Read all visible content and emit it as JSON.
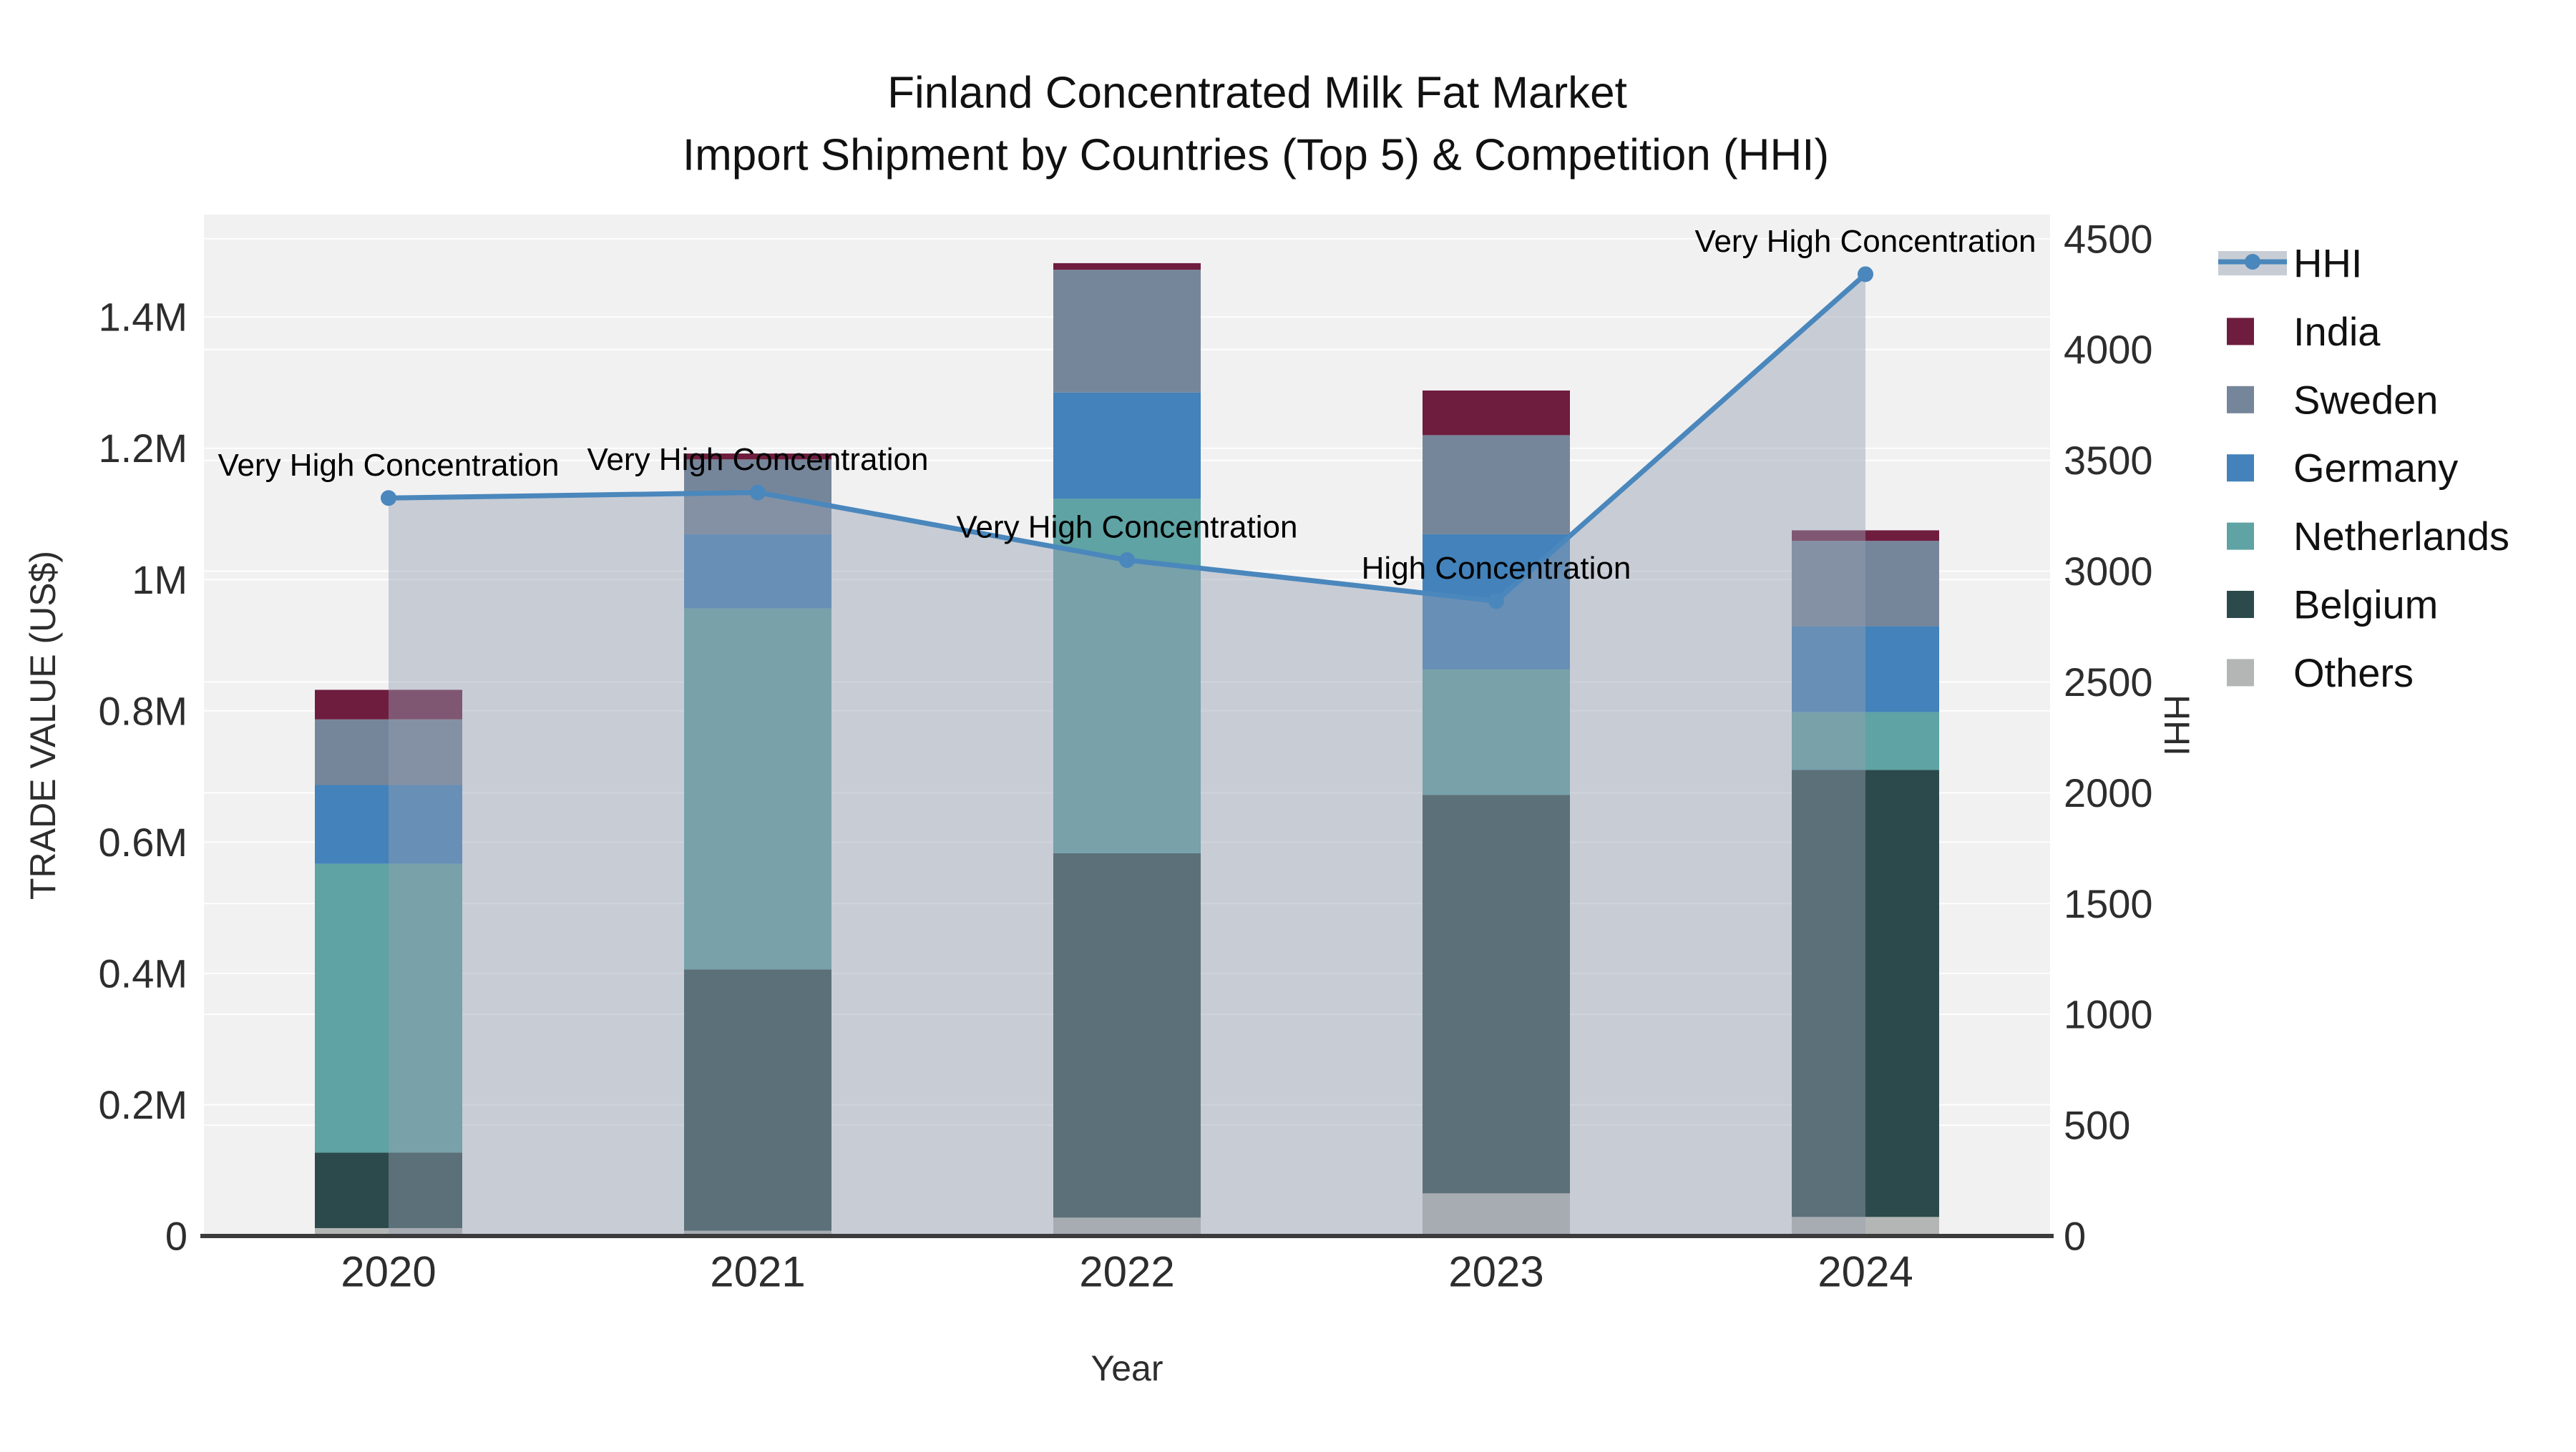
{
  "title": {
    "line1": "Finland Concentrated Milk Fat Market",
    "line2": "Import Shipment by Countries (Top 5) & Competition (HHI)"
  },
  "axes": {
    "x": {
      "title": "Year",
      "tick_labels": [
        "2020",
        "2021",
        "2022",
        "2023",
        "2024"
      ]
    },
    "y_left": {
      "title": "TRADE VALUE (US$)",
      "tick_labels": [
        "0",
        "0.2M",
        "0.4M",
        "0.6M",
        "0.8M",
        "1M",
        "1.2M",
        "1.4M"
      ],
      "tick_step": 200000,
      "max": 1556000
    },
    "y_right": {
      "title": "HHI",
      "tick_labels": [
        "0",
        "500",
        "1000",
        "1500",
        "2000",
        "2500",
        "3000",
        "3500",
        "4000",
        "4500"
      ],
      "tick_step": 500,
      "max": 4609
    }
  },
  "legend": {
    "items": [
      {
        "label": "HHI",
        "type": "line",
        "color": "#4a87bc",
        "band_color": "#c8cdd5"
      },
      {
        "label": "India",
        "type": "swatch",
        "color": "#6e1d3e"
      },
      {
        "label": "Sweden",
        "type": "swatch",
        "color": "#76869a"
      },
      {
        "label": "Germany",
        "type": "swatch",
        "color": "#4382ba"
      },
      {
        "label": "Netherlands",
        "type": "swatch",
        "color": "#5fa3a4"
      },
      {
        "label": "Belgium",
        "type": "swatch",
        "color": "#2c4a4c"
      },
      {
        "label": "Others",
        "type": "swatch",
        "color": "#b4b6b5"
      }
    ]
  },
  "chart_data": {
    "type": "combo-stacked-bar-line",
    "categories": [
      "2020",
      "2021",
      "2022",
      "2023",
      "2024"
    ],
    "bar_value_unit": "US$",
    "stack_order_bottom_to_top": [
      "Others",
      "Belgium",
      "Netherlands",
      "Germany",
      "Sweden",
      "India"
    ],
    "series": [
      {
        "name": "India",
        "color": "#6e1d3e",
        "values": [
          45000,
          9000,
          10000,
          68000,
          16000
        ]
      },
      {
        "name": "Sweden",
        "color": "#76869a",
        "values": [
          100000,
          114000,
          187000,
          151000,
          130000
        ]
      },
      {
        "name": "Germany",
        "color": "#4382ba",
        "values": [
          120000,
          113000,
          162000,
          206000,
          131000
        ]
      },
      {
        "name": "Netherlands",
        "color": "#5fa3a4",
        "values": [
          440000,
          550000,
          540000,
          191000,
          88000
        ]
      },
      {
        "name": "Belgium",
        "color": "#2c4a4c",
        "values": [
          115000,
          398000,
          555000,
          607000,
          681000
        ]
      },
      {
        "name": "Others",
        "color": "#b4b6b5",
        "values": [
          12000,
          8000,
          28000,
          65000,
          29000
        ]
      }
    ],
    "bar_totals": [
      832000,
      1192000,
      1482000,
      1288000,
      1075000
    ],
    "hhi": {
      "name": "HHI",
      "color": "#4a87bc",
      "area_color": "rgba(150,160,178,0.45)",
      "values": [
        3330,
        3355,
        3050,
        2865,
        4340
      ],
      "annotations": [
        "Very High Concentration",
        "Very High Concentration",
        "Very High Concentration",
        "High Concentration",
        "Very High Concentration"
      ]
    },
    "ylim_left": [
      0,
      1556000
    ],
    "ylim_right": [
      0,
      4609
    ],
    "grid": true,
    "plot_background": "#f1f1f2",
    "gridline_color": "rgba(255,255,255,0.9)",
    "axisline_color": "#3b3b3b",
    "legend_position": "right"
  }
}
